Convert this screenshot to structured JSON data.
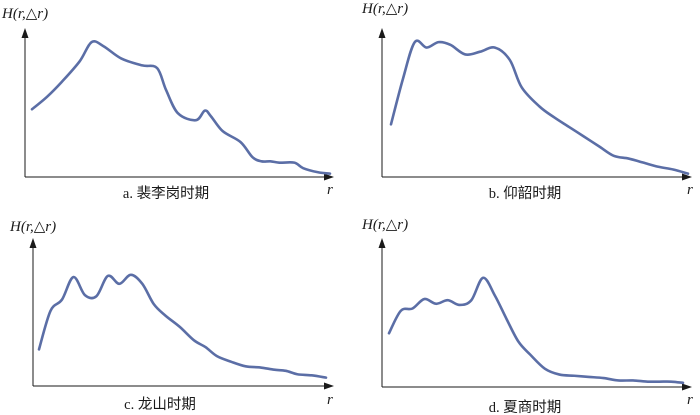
{
  "colors": {
    "curve": "#5b6ea6",
    "axis": "#1a1a1a"
  },
  "chart_data": [
    {
      "type": "line",
      "caption": "a. 裴李岗时期",
      "ylabel": "H(r,△r)",
      "xlabel": "r",
      "ylim": [
        0,
        1
      ],
      "series": [
        {
          "x": [
            0,
            0.05,
            0.1,
            0.16,
            0.2,
            0.24,
            0.3,
            0.37,
            0.42,
            0.45,
            0.49,
            0.55,
            0.58,
            0.6,
            0.64,
            0.7,
            0.74,
            0.77,
            0.8,
            0.83,
            0.88,
            0.91,
            0.96,
            1.0
          ],
          "y": [
            0.48,
            0.57,
            0.68,
            0.83,
            0.97,
            0.94,
            0.85,
            0.8,
            0.78,
            0.62,
            0.45,
            0.4,
            0.47,
            0.43,
            0.32,
            0.24,
            0.13,
            0.1,
            0.1,
            0.09,
            0.09,
            0.05,
            0.02,
            0.01
          ]
        }
      ]
    },
    {
      "type": "line",
      "caption": "b. 仰韶时期",
      "ylabel": "H(r,△r)",
      "xlabel": "r",
      "ylim": [
        0,
        1
      ],
      "series": [
        {
          "x": [
            0,
            0.04,
            0.08,
            0.12,
            0.16,
            0.2,
            0.25,
            0.3,
            0.35,
            0.4,
            0.44,
            0.5,
            0.55,
            0.6,
            0.65,
            0.7,
            0.75,
            0.8,
            0.85,
            0.9,
            0.95,
            1.0
          ],
          "y": [
            0.37,
            0.7,
            0.97,
            0.93,
            0.97,
            0.95,
            0.88,
            0.9,
            0.93,
            0.84,
            0.64,
            0.5,
            0.42,
            0.35,
            0.28,
            0.21,
            0.14,
            0.12,
            0.09,
            0.06,
            0.04,
            0.01
          ]
        }
      ]
    },
    {
      "type": "line",
      "caption": "c. 龙山时期",
      "ylabel": "H(r,△r)",
      "xlabel": "r",
      "ylim": [
        0,
        1
      ],
      "series": [
        {
          "x": [
            0,
            0.04,
            0.08,
            0.12,
            0.16,
            0.2,
            0.24,
            0.28,
            0.32,
            0.36,
            0.4,
            0.44,
            0.49,
            0.54,
            0.58,
            0.62,
            0.67,
            0.72,
            0.77,
            0.82,
            0.86,
            0.9,
            0.95,
            1.0
          ],
          "y": [
            0.28,
            0.62,
            0.72,
            0.92,
            0.76,
            0.75,
            0.93,
            0.86,
            0.94,
            0.86,
            0.68,
            0.58,
            0.48,
            0.36,
            0.3,
            0.22,
            0.17,
            0.13,
            0.12,
            0.1,
            0.09,
            0.06,
            0.05,
            0.03
          ]
        }
      ]
    },
    {
      "type": "line",
      "caption": "d. 夏商时期",
      "ylabel": "H(r,△r)",
      "xlabel": "r",
      "ylim": [
        0,
        1
      ],
      "series": [
        {
          "x": [
            0,
            0.04,
            0.08,
            0.12,
            0.16,
            0.2,
            0.24,
            0.28,
            0.32,
            0.36,
            0.4,
            0.44,
            0.48,
            0.53,
            0.58,
            0.63,
            0.68,
            0.73,
            0.78,
            0.83,
            0.88,
            0.92,
            0.96,
            1.0
          ],
          "y": [
            0.43,
            0.62,
            0.64,
            0.72,
            0.68,
            0.71,
            0.67,
            0.71,
            0.9,
            0.75,
            0.55,
            0.36,
            0.25,
            0.13,
            0.08,
            0.07,
            0.06,
            0.05,
            0.03,
            0.03,
            0.02,
            0.02,
            0.02,
            0.01
          ]
        }
      ]
    }
  ]
}
